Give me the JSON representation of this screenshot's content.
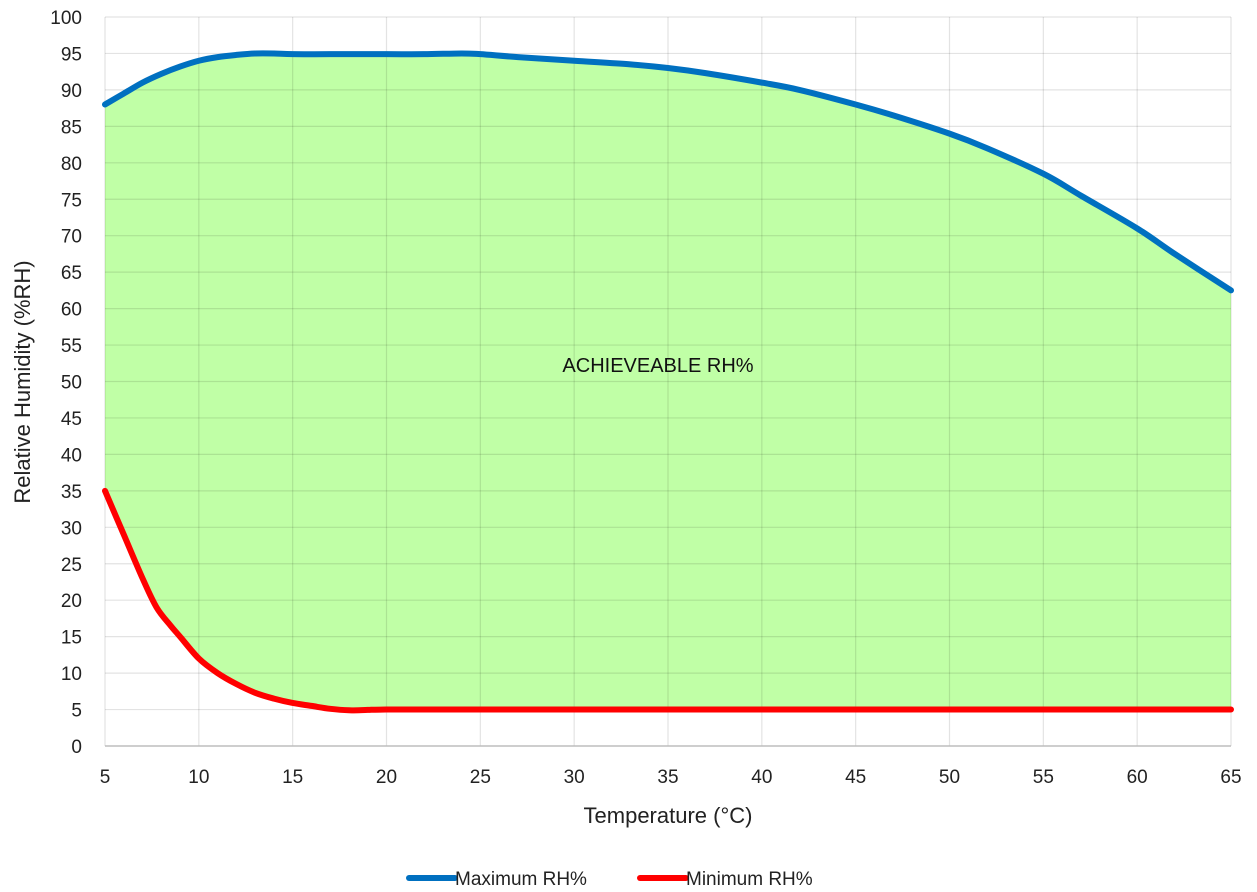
{
  "chart_data": {
    "type": "area",
    "title": "",
    "xlabel": "Temperature (°C)",
    "ylabel": "Relative Humidity (%RH)",
    "xlim": [
      5,
      65
    ],
    "ylim": [
      0,
      100
    ],
    "x_ticks": [
      "5",
      "10",
      "15",
      "20",
      "25",
      "30",
      "35",
      "40",
      "45",
      "50",
      "55",
      "60",
      "65"
    ],
    "y_ticks": [
      "0",
      "5",
      "10",
      "15",
      "20",
      "25",
      "30",
      "35",
      "40",
      "45",
      "50",
      "55",
      "60",
      "65",
      "70",
      "75",
      "80",
      "85",
      "90",
      "95",
      "100"
    ],
    "grid": true,
    "legend_position": "bottom",
    "annotation": "ACHIEVEABLE RH%",
    "fill_color": "#c0ffa6",
    "series": [
      {
        "name": "Maximum RH%",
        "color": "#0070c0",
        "x": [
          5,
          6,
          7,
          8,
          9,
          10,
          11,
          12,
          13,
          14,
          15,
          17,
          20,
          22,
          24,
          25,
          27,
          30,
          33,
          35,
          37,
          40,
          42,
          45,
          47,
          50,
          52,
          55,
          57,
          60,
          62,
          65
        ],
        "y": [
          88,
          89.5,
          91,
          92.2,
          93.2,
          94,
          94.5,
          94.8,
          95,
          95,
          94.9,
          94.9,
          94.9,
          94.9,
          95,
          94.9,
          94.5,
          94,
          93.5,
          93,
          92.3,
          91,
          90,
          88,
          86.5,
          84,
          82,
          78.5,
          75.5,
          71,
          67.5,
          62.5
        ]
      },
      {
        "name": "Minimum RH%",
        "color": "#ff0000",
        "x": [
          5,
          6,
          7,
          7.75,
          8.5,
          9,
          10,
          11,
          12,
          13,
          14,
          15,
          16,
          17,
          18,
          19,
          20,
          25,
          30,
          35,
          40,
          45,
          50,
          55,
          60,
          65
        ],
        "y": [
          35,
          29,
          23,
          19,
          16.5,
          15,
          12,
          10,
          8.5,
          7.3,
          6.5,
          5.9,
          5.5,
          5.1,
          4.9,
          4.95,
          5,
          5,
          5,
          5,
          5,
          5,
          5,
          5,
          5,
          5
        ]
      }
    ]
  }
}
